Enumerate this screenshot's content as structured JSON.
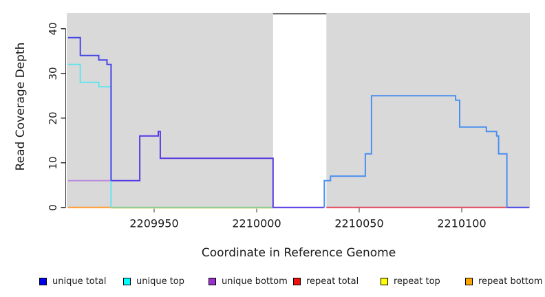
{
  "figure": {
    "xlabel": "Coordinate in Reference Genome",
    "ylabel": "Read Coverage Depth"
  },
  "legend": [
    {
      "label": "unique total",
      "color": "#0000ee",
      "icon": "legend-swatch-blue"
    },
    {
      "label": "unique top",
      "color": "#00ffff",
      "icon": "legend-swatch-cyan"
    },
    {
      "label": "unique bottom",
      "color": "#9932cc",
      "icon": "legend-swatch-purple"
    },
    {
      "label": "repeat total",
      "color": "#ee1111",
      "icon": "legend-swatch-red"
    },
    {
      "label": "repeat top",
      "color": "#ffff00",
      "icon": "legend-swatch-yellow"
    },
    {
      "label": "repeat bottom",
      "color": "#ffa500",
      "icon": "legend-swatch-orange"
    }
  ],
  "chart_data": {
    "type": "line",
    "step": true,
    "title": "",
    "xlabel": "Coordinate in Reference Genome",
    "ylabel": "Read Coverage Depth",
    "xlim": [
      2209908,
      2210133
    ],
    "ylim": [
      0,
      43.5
    ],
    "xticks": [
      2209950,
      2210000,
      2210050,
      2210100
    ],
    "yticks": [
      0,
      10,
      20,
      30,
      40
    ],
    "grid": false,
    "legend_position": "bottom",
    "panel_bg": "#d9d9d9",
    "axis_color": "#333333",
    "gap_region": {
      "x_start": 2210008,
      "x_end": 2210034,
      "fill": "#ffffff",
      "top_border": "#6e6e6e"
    },
    "series": [
      {
        "name": "zero-line-pale-yellow",
        "legend": "repeat top",
        "color": "#eceaae",
        "width": 1,
        "dy": 1.6,
        "points": [
          [
            2209929,
            0
          ],
          [
            2210008,
            0
          ]
        ]
      },
      {
        "name": "zero-line-green-blend",
        "legend": "unique top + repeat top",
        "color": "#8bcb8f",
        "width": 2,
        "dy": 0,
        "points": [
          [
            2209929,
            0
          ],
          [
            2210008,
            0
          ]
        ]
      },
      {
        "name": "zero-line-orange",
        "legend": "repeat bottom",
        "color": "#ff9a2e",
        "width": 2,
        "dy": 0,
        "points": [
          [
            2209908,
            0
          ],
          [
            2209929,
            0
          ]
        ]
      },
      {
        "name": "zero-line-red",
        "legend": "repeat total",
        "color": "#e04a5c",
        "width": 2,
        "dy": 0,
        "points": [
          [
            2210034,
            0
          ],
          [
            2210122,
            0
          ]
        ]
      },
      {
        "name": "unique-bottom-left",
        "legend": "unique bottom",
        "color": "#bb8ade",
        "width": 2,
        "dy": 0,
        "points": [
          [
            2209908,
            6
          ],
          [
            2209929,
            6
          ]
        ]
      },
      {
        "name": "unique-top-left-steps",
        "legend": "unique top",
        "color": "#62e4ec",
        "width": 2,
        "dy": 0,
        "points": [
          [
            2209908,
            32
          ],
          [
            2209914,
            32
          ],
          [
            2209914,
            28
          ],
          [
            2209923,
            28
          ],
          [
            2209923,
            27
          ],
          [
            2209929,
            27
          ],
          [
            2209929,
            0
          ]
        ]
      },
      {
        "name": "unique-total-left-steps",
        "legend": "unique total",
        "color": "#4646e6",
        "width": 2,
        "dy": 0,
        "points": [
          [
            2209908,
            38
          ],
          [
            2209914,
            38
          ],
          [
            2209914,
            34
          ],
          [
            2209923,
            34
          ],
          [
            2209923,
            33
          ],
          [
            2209927,
            33
          ],
          [
            2209927,
            32
          ],
          [
            2209929,
            32
          ],
          [
            2209929,
            6
          ]
        ]
      },
      {
        "name": "unique-total-bottom-overlap-steps",
        "legend": "unique total + unique bottom",
        "color": "#5838e5",
        "width": 2,
        "dy": 0,
        "points": [
          [
            2209929,
            6
          ],
          [
            2209943,
            6
          ],
          [
            2209943,
            16
          ],
          [
            2209952,
            16
          ],
          [
            2209952,
            17
          ],
          [
            2209953,
            17
          ],
          [
            2209953,
            11
          ],
          [
            2210008,
            11
          ],
          [
            2210008,
            0
          ],
          [
            2210033,
            0
          ]
        ]
      },
      {
        "name": "unique-total-top-overlap-right-steps",
        "legend": "unique total + unique top",
        "color": "#4a8ff0",
        "width": 2,
        "dy": 0,
        "points": [
          [
            2210033,
            0
          ],
          [
            2210033,
            6
          ],
          [
            2210036,
            6
          ],
          [
            2210036,
            7
          ],
          [
            2210053,
            7
          ],
          [
            2210053,
            12
          ],
          [
            2210056,
            12
          ],
          [
            2210056,
            25
          ],
          [
            2210097,
            25
          ],
          [
            2210097,
            24
          ],
          [
            2210099,
            24
          ],
          [
            2210099,
            18
          ],
          [
            2210112,
            18
          ],
          [
            2210112,
            17
          ],
          [
            2210117,
            17
          ],
          [
            2210117,
            16
          ],
          [
            2210118,
            16
          ],
          [
            2210118,
            12
          ],
          [
            2210122,
            12
          ],
          [
            2210122,
            0
          ]
        ]
      },
      {
        "name": "zero-line-right-violet",
        "legend": "unique total",
        "color": "#4646e6",
        "width": 2,
        "dy": 0,
        "points": [
          [
            2210122,
            0
          ],
          [
            2210133,
            0
          ]
        ]
      }
    ]
  }
}
